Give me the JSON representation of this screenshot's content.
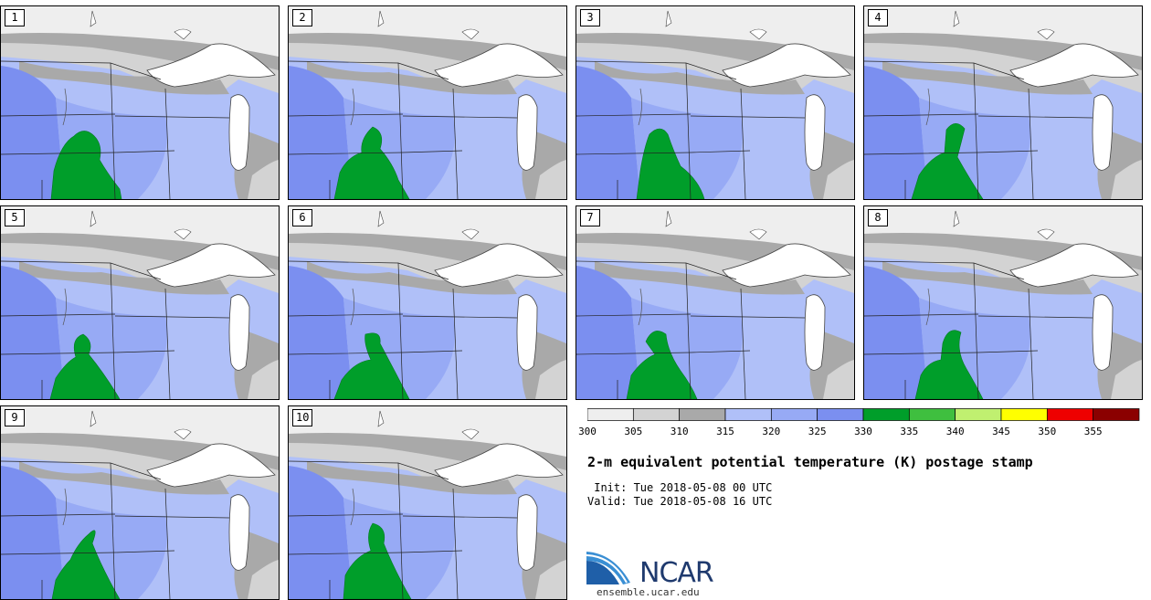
{
  "title": "2-m equivalent potential temperature (K) postage stamp",
  "init": " Init: Tue 2018-05-08 00 UTC",
  "valid": "Valid: Tue 2018-05-08 16 UTC",
  "members": [
    "1",
    "2",
    "3",
    "4",
    "5",
    "6",
    "7",
    "8",
    "9",
    "10"
  ],
  "colorbar": {
    "ticks": [
      "300",
      "305",
      "310",
      "315",
      "320",
      "325",
      "330",
      "335",
      "340",
      "345",
      "350",
      "355"
    ],
    "colors": [
      "#eeeeee",
      "#d3d3d3",
      "#a9a9a9",
      "#b0c0f8",
      "#97aaf5",
      "#7b8ff0",
      "#009e2a",
      "#3fbf3f",
      "#c0f070",
      "#ffff00",
      "#ee0000",
      "#8b0000"
    ]
  },
  "map_colors": {
    "lake": "#ffffff",
    "cold": "#eeeeee",
    "gray1": "#d3d3d3",
    "gray2": "#a9a9a9",
    "light_blue": "#b0c0f8",
    "mid_blue": "#97aaf5",
    "dark_blue": "#7b8ff0",
    "green": "#009e2a"
  },
  "logo": {
    "text": "NCAR",
    "url": "ensemble.ucar.edu"
  }
}
